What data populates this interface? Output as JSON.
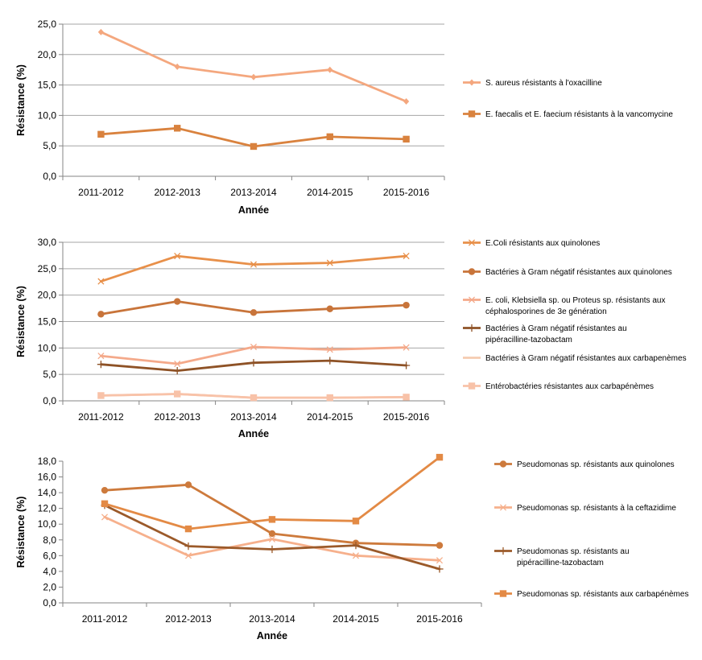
{
  "chart_data": [
    {
      "type": "line",
      "categories": [
        "2011-2012",
        "2012-2013",
        "2013-2014",
        "2014-2015",
        "2015-2016"
      ],
      "ylim": [
        0,
        25
      ],
      "yticks": [
        0,
        5,
        10,
        15,
        20,
        25
      ],
      "ytick_labels": [
        "0,0",
        "5,0",
        "10,0",
        "15,0",
        "20,0",
        "25,0"
      ],
      "xlabel": "Année",
      "ylabel": "Résistance (%)",
      "grid": true,
      "legend_position": "right",
      "series": [
        {
          "name": "S. aureus résistants à l'oxacilline",
          "color": "#F4A77E",
          "marker": "diamond",
          "values": [
            23.7,
            18.0,
            16.3,
            17.5,
            12.3
          ]
        },
        {
          "name": "E. faecalis et E. faecium résistants à la vancomycine",
          "color": "#D9823E",
          "marker": "square",
          "values": [
            6.9,
            7.9,
            4.9,
            6.5,
            6.1
          ]
        }
      ]
    },
    {
      "type": "line",
      "categories": [
        "2011-2012",
        "2012-2013",
        "2013-2014",
        "2014-2015",
        "2015-2016"
      ],
      "ylim": [
        0,
        30
      ],
      "yticks": [
        0,
        5,
        10,
        15,
        20,
        25,
        30
      ],
      "ytick_labels": [
        "0,0",
        "5,0",
        "10,0",
        "15,0",
        "20,0",
        "25,0",
        "30,0"
      ],
      "xlabel": "Année",
      "ylabel": "Résistance (%)",
      "grid": true,
      "legend_position": "right",
      "series": [
        {
          "name": "E.Coli résistants aux quinolones",
          "color": "#E8904A",
          "marker": "x",
          "values": [
            22.6,
            27.4,
            25.8,
            26.1,
            27.4
          ]
        },
        {
          "name": "Bactéries à Gram négatif résistantes aux quinolones",
          "color": "#C8743A",
          "marker": "circle",
          "values": [
            16.4,
            18.8,
            16.7,
            17.4,
            18.1
          ]
        },
        {
          "name": "E. coli, Klebsiella sp. ou Proteus sp. résistants aux céphalosporines de 3e génération",
          "color": "#F4A98A",
          "marker": "x",
          "values": [
            8.5,
            7.0,
            10.2,
            9.7,
            10.1
          ]
        },
        {
          "name": "Bactéries à Gram négatif résistantes au pipéracilline-tazobactam",
          "color": "#8E5226",
          "marker": "plus",
          "values": [
            6.9,
            5.7,
            7.2,
            7.6,
            6.7
          ]
        },
        {
          "name": "Bactéries à Gram négatif résistantes aux carbapenèmes",
          "color": "#F5CBB0",
          "marker": "none",
          "values": [
            1.0,
            1.3,
            0.6,
            0.6,
            0.7
          ]
        },
        {
          "name": "Entérobactéries résistantes aux carbapénèmes",
          "color": "#F8C2A8",
          "marker": "square",
          "values": [
            1.0,
            1.3,
            0.6,
            0.6,
            0.7
          ]
        }
      ]
    },
    {
      "type": "line",
      "categories": [
        "2011-2012",
        "2012-2013",
        "2013-2014",
        "2014-2015",
        "2015-2016"
      ],
      "ylim": [
        0,
        18
      ],
      "yticks": [
        0,
        2,
        4,
        6,
        8,
        10,
        12,
        14,
        16,
        18
      ],
      "ytick_labels": [
        "0,0",
        "2,0",
        "4,0",
        "6,0",
        "8,0",
        "10,0",
        "12,0",
        "14,0",
        "16,0",
        "18,0"
      ],
      "xlabel": "Année",
      "ylabel": "Résistance (%)",
      "grid": false,
      "legend_position": "right",
      "series": [
        {
          "name": "Pseudomonas sp. résistants aux quinolones",
          "color": "#CD7A3C",
          "marker": "circle",
          "values": [
            14.3,
            15.0,
            8.8,
            7.6,
            7.3
          ]
        },
        {
          "name": "Pseudomonas sp. résistants à la ceftazidime",
          "color": "#F6B08C",
          "marker": "x",
          "values": [
            10.9,
            6.0,
            8.1,
            6.0,
            5.4
          ]
        },
        {
          "name": "Pseudomonas sp. résistants au pipéracilline-tazobactam",
          "color": "#9B5A2A",
          "marker": "plus",
          "values": [
            12.4,
            7.2,
            6.8,
            7.3,
            4.3
          ]
        },
        {
          "name": "Pseudomonas sp. résistants aux carbapénèmes",
          "color": "#E38A45",
          "marker": "square",
          "values": [
            12.6,
            9.4,
            10.6,
            10.4,
            18.5
          ]
        }
      ]
    }
  ]
}
